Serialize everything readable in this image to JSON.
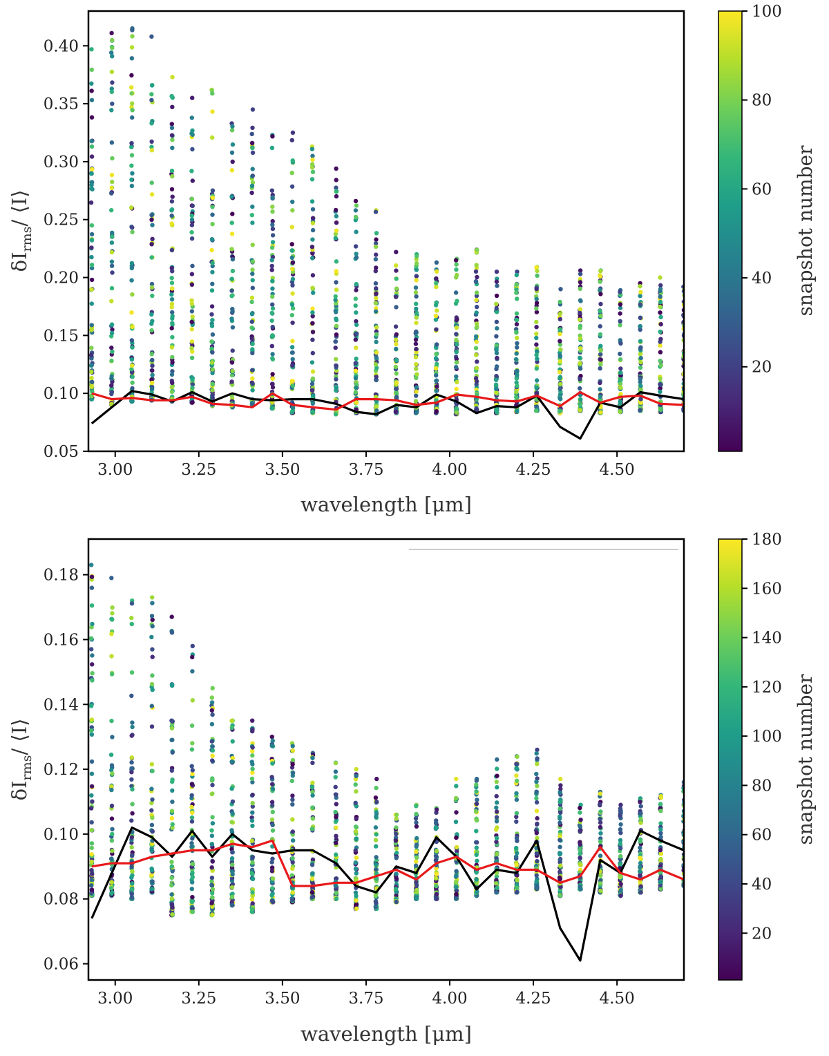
{
  "colors": {
    "mean_line": "#000000",
    "median_line": "#e8191b",
    "viridis": [
      "#440154",
      "#482878",
      "#3e4989",
      "#31688e",
      "#26828e",
      "#1f9e89",
      "#35b779",
      "#6ece58",
      "#b5de2b",
      "#fde725"
    ]
  },
  "chart_data": [
    {
      "type": "scatter",
      "ylabel": "δI_rms/ ⟨I⟩",
      "ylabel_main": "δI",
      "ylabel_sub": "rms",
      "ylabel_rest": "/ ⟨I⟩",
      "xlabel": "wavelength [μm]",
      "xlim": [
        2.92,
        4.7
      ],
      "ylim": [
        0.05,
        0.43
      ],
      "xticks": [
        "3.00",
        "3.25",
        "3.50",
        "3.75",
        "4.00",
        "4.25",
        "4.50"
      ],
      "yticks": [
        "0.05",
        "0.10",
        "0.15",
        "0.20",
        "0.25",
        "0.30",
        "0.35",
        "0.40"
      ],
      "colorbar": {
        "label": "snapshot number",
        "min": 1,
        "max": 100,
        "ticks": [
          "20",
          "40",
          "60",
          "80",
          "100"
        ]
      },
      "x": [
        2.93,
        2.99,
        3.05,
        3.11,
        3.17,
        3.23,
        3.29,
        3.35,
        3.41,
        3.47,
        3.53,
        3.59,
        3.66,
        3.72,
        3.78,
        3.84,
        3.9,
        3.96,
        4.02,
        4.08,
        4.14,
        4.2,
        4.26,
        4.33,
        4.39,
        4.45,
        4.51,
        4.57,
        4.63,
        4.7
      ],
      "column_max": [
        0.397,
        0.411,
        0.415,
        0.408,
        0.373,
        0.355,
        0.362,
        0.333,
        0.345,
        0.323,
        0.325,
        0.313,
        0.294,
        0.266,
        0.258,
        0.222,
        0.22,
        0.213,
        0.216,
        0.224,
        0.205,
        0.205,
        0.209,
        0.19,
        0.206,
        0.206,
        0.189,
        0.195,
        0.2,
        0.192
      ],
      "column_min": [
        0.095,
        0.09,
        0.093,
        0.094,
        0.093,
        0.092,
        0.089,
        0.088,
        0.09,
        0.087,
        0.083,
        0.083,
        0.082,
        0.083,
        0.082,
        0.083,
        0.083,
        0.083,
        0.082,
        0.084,
        0.083,
        0.084,
        0.085,
        0.083,
        0.085,
        0.083,
        0.084,
        0.085,
        0.084,
        0.085
      ],
      "series": [
        {
          "name": "black",
          "values": [
            0.074,
            0.088,
            0.102,
            0.099,
            0.093,
            0.101,
            0.093,
            0.1,
            0.095,
            0.094,
            0.095,
            0.095,
            0.091,
            0.084,
            0.082,
            0.09,
            0.088,
            0.099,
            0.093,
            0.083,
            0.089,
            0.088,
            0.098,
            0.071,
            0.061,
            0.092,
            0.088,
            0.101,
            0.098,
            0.095
          ]
        },
        {
          "name": "red",
          "values": [
            0.1,
            0.095,
            0.096,
            0.094,
            0.094,
            0.097,
            0.091,
            0.09,
            0.088,
            0.1,
            0.09,
            0.088,
            0.086,
            0.095,
            0.095,
            0.094,
            0.09,
            0.092,
            0.099,
            0.097,
            0.094,
            0.093,
            0.098,
            0.089,
            0.101,
            0.092,
            0.097,
            0.098,
            0.091,
            0.09
          ]
        }
      ]
    },
    {
      "type": "scatter",
      "ylabel": "δI_rms/ ⟨I⟩",
      "ylabel_main": "δI",
      "ylabel_sub": "rms",
      "ylabel_rest": "/ ⟨I⟩",
      "xlabel": "wavelength [μm]",
      "xlim": [
        2.92,
        4.7
      ],
      "ylim": [
        0.055,
        0.191
      ],
      "xticks": [
        "3.00",
        "3.25",
        "3.50",
        "3.75",
        "4.00",
        "4.25",
        "4.50"
      ],
      "yticks": [
        "0.06",
        "0.08",
        "0.10",
        "0.12",
        "0.14",
        "0.16",
        "0.18"
      ],
      "colorbar": {
        "label": "snapshot number",
        "min": 1,
        "max": 180,
        "ticks": [
          "20",
          "40",
          "60",
          "80",
          "100",
          "120",
          "140",
          "160",
          "180"
        ]
      },
      "x": [
        2.93,
        2.99,
        3.05,
        3.11,
        3.17,
        3.23,
        3.29,
        3.35,
        3.41,
        3.47,
        3.53,
        3.59,
        3.66,
        3.72,
        3.78,
        3.84,
        3.9,
        3.96,
        4.02,
        4.08,
        4.14,
        4.2,
        4.26,
        4.33,
        4.39,
        4.45,
        4.51,
        4.57,
        4.63,
        4.7
      ],
      "column_max": [
        0.183,
        0.179,
        0.172,
        0.173,
        0.167,
        0.158,
        0.145,
        0.135,
        0.135,
        0.13,
        0.128,
        0.125,
        0.122,
        0.12,
        0.117,
        0.106,
        0.109,
        0.108,
        0.117,
        0.117,
        0.123,
        0.124,
        0.126,
        0.117,
        0.109,
        0.113,
        0.109,
        0.111,
        0.112,
        0.116
      ],
      "column_min": [
        0.081,
        0.081,
        0.08,
        0.082,
        0.075,
        0.076,
        0.075,
        0.078,
        0.076,
        0.079,
        0.079,
        0.08,
        0.08,
        0.077,
        0.077,
        0.079,
        0.08,
        0.08,
        0.08,
        0.081,
        0.082,
        0.082,
        0.083,
        0.081,
        0.083,
        0.082,
        0.081,
        0.082,
        0.083,
        0.084
      ],
      "series": [
        {
          "name": "black",
          "values": [
            0.074,
            0.088,
            0.102,
            0.099,
            0.093,
            0.101,
            0.093,
            0.1,
            0.095,
            0.094,
            0.095,
            0.095,
            0.091,
            0.084,
            0.082,
            0.09,
            0.088,
            0.099,
            0.093,
            0.083,
            0.089,
            0.088,
            0.098,
            0.071,
            0.061,
            0.092,
            0.088,
            0.101,
            0.098,
            0.095
          ]
        },
        {
          "name": "red",
          "values": [
            0.09,
            0.091,
            0.091,
            0.093,
            0.094,
            0.095,
            0.095,
            0.097,
            0.096,
            0.098,
            0.084,
            0.084,
            0.085,
            0.085,
            0.087,
            0.089,
            0.086,
            0.091,
            0.093,
            0.089,
            0.091,
            0.089,
            0.089,
            0.085,
            0.087,
            0.096,
            0.088,
            0.086,
            0.089,
            0.086
          ]
        }
      ]
    }
  ]
}
